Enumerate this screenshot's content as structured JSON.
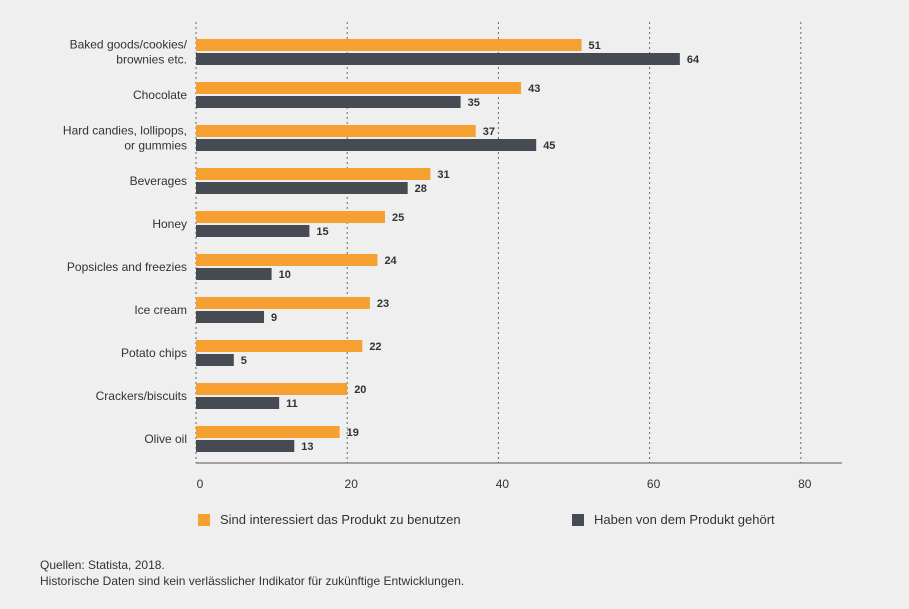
{
  "chart_data": {
    "type": "bar",
    "orientation": "horizontal",
    "categories": [
      "Baked goods/cookies/\nbrownies etc.",
      "Chocolate",
      "Hard candies, lollipops,\nor gummies",
      "Beverages",
      "Honey",
      "Popsicles and freezies",
      "Ice cream",
      "Potato chips",
      "Crackers/biscuits",
      "Olive oil"
    ],
    "series": [
      {
        "name": "Sind interessiert das Produkt zu benutzen",
        "color": "#f5a031",
        "values": [
          51,
          43,
          37,
          31,
          25,
          24,
          23,
          22,
          20,
          19
        ]
      },
      {
        "name": "Haben von dem Produkt gehört",
        "color": "#464b53",
        "values": [
          64,
          35,
          45,
          28,
          15,
          10,
          9,
          5,
          11,
          13
        ]
      }
    ],
    "xlim": [
      0,
      85
    ],
    "xticks": [
      0,
      20,
      40,
      60,
      80
    ],
    "grid": "vertical-dotted",
    "legend": "bottom"
  },
  "source": {
    "line1": "Quellen: Statista, 2018.",
    "line2": "Historische Daten sind kein verlässlicher Indikator für zukünftige Entwicklungen."
  }
}
